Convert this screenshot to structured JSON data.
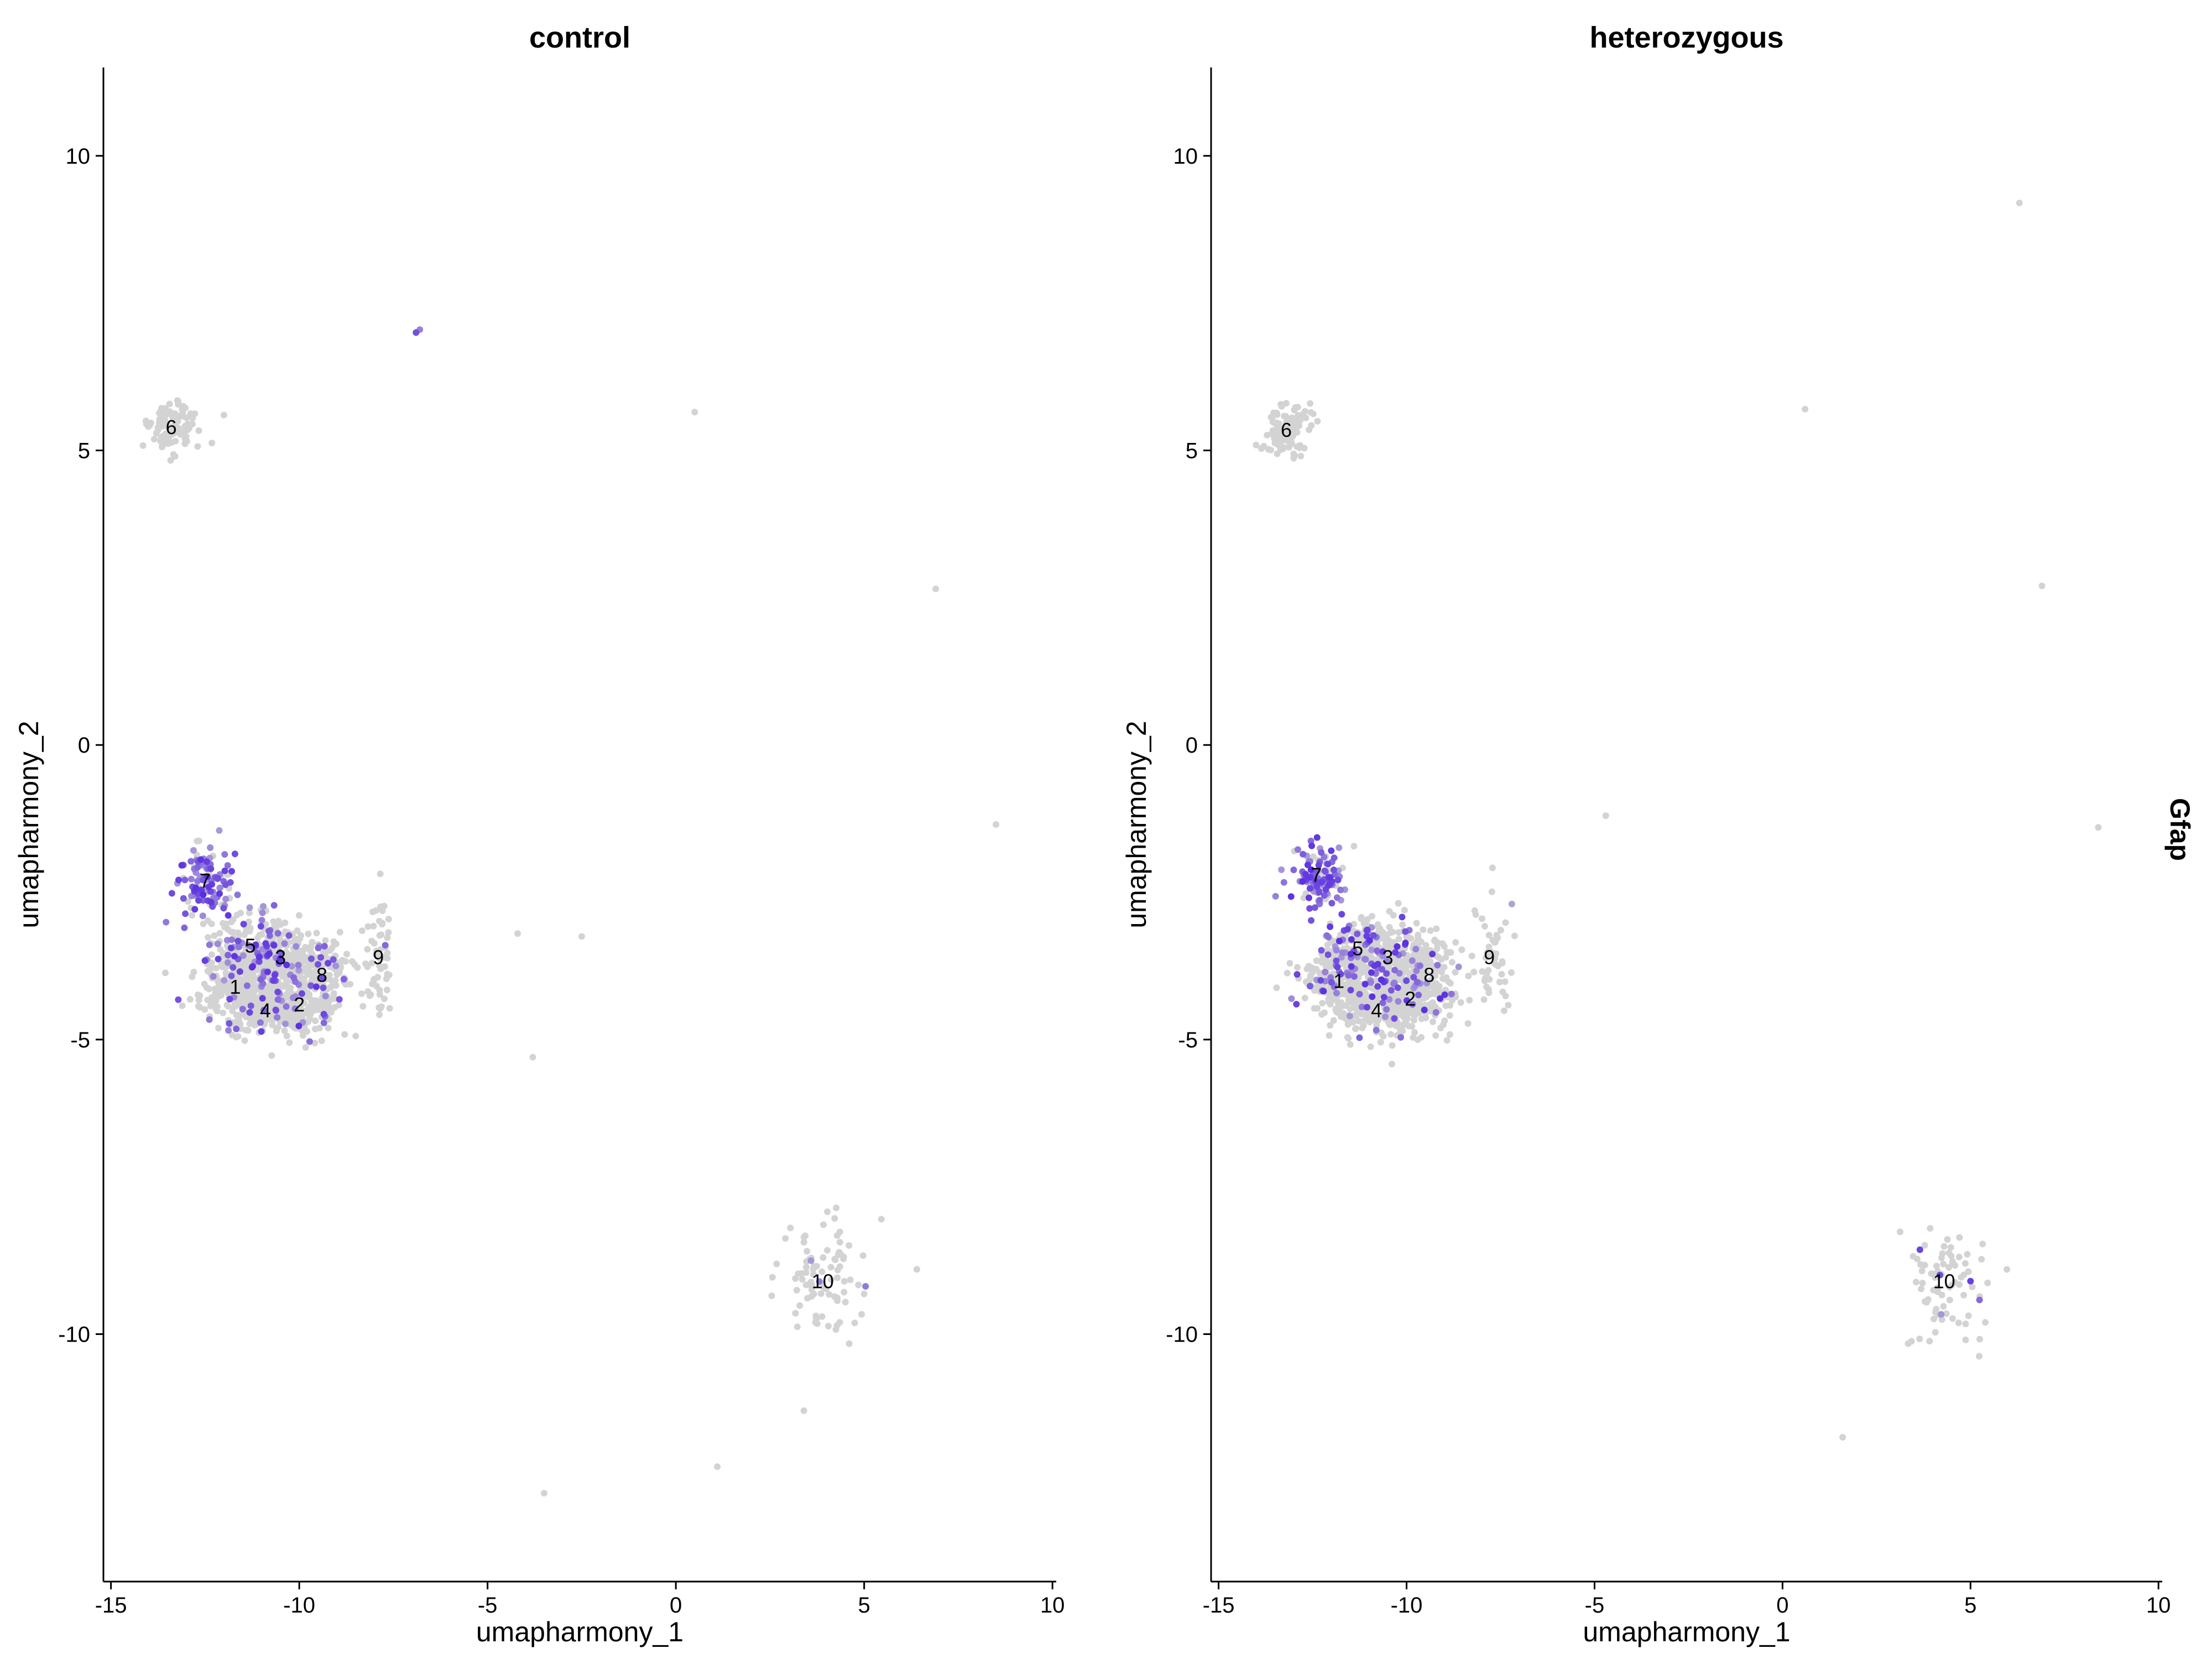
{
  "chart_data": [
    {
      "type": "scatter",
      "title": "control",
      "xlabel": "umapharmony_1",
      "ylabel": "umapharmony_2",
      "xlim": [
        -15.2,
        10.1
      ],
      "ylim": [
        -14.2,
        11.5
      ],
      "x_ticks": [
        -15,
        -10,
        -5,
        0,
        5,
        10
      ],
      "x_tick_labels": [
        "-15",
        "-10",
        "-5",
        "0",
        "5",
        "10"
      ],
      "y_ticks": [
        -10,
        -5,
        0,
        5,
        10
      ],
      "y_tick_labels": [
        "-10",
        "-5",
        "0",
        "5",
        "10"
      ],
      "grid": false,
      "low_color": "#d3d3d3",
      "high_color": "#5a2ee0",
      "clusters": [
        {
          "label": "1",
          "x": -11.7,
          "y": -4.1,
          "n": 220,
          "sx": 0.55,
          "sy": 0.3,
          "expr": 0.12
        },
        {
          "label": "2",
          "x": -10.0,
          "y": -4.4,
          "n": 180,
          "sx": 0.5,
          "sy": 0.3,
          "expr": 0.1
        },
        {
          "label": "3",
          "x": -10.5,
          "y": -3.6,
          "n": 180,
          "sx": 0.55,
          "sy": 0.3,
          "expr": 0.2
        },
        {
          "label": "4",
          "x": -10.9,
          "y": -4.5,
          "n": 200,
          "sx": 0.6,
          "sy": 0.25,
          "expr": 0.08
        },
        {
          "label": "5",
          "x": -11.3,
          "y": -3.4,
          "n": 170,
          "sx": 0.55,
          "sy": 0.3,
          "expr": 0.25
        },
        {
          "label": "6",
          "x": -13.4,
          "y": 5.4,
          "n": 110,
          "sx": 0.3,
          "sy": 0.2,
          "expr": 0.0
        },
        {
          "label": "7",
          "x": -12.5,
          "y": -2.3,
          "n": 120,
          "sx": 0.35,
          "sy": 0.3,
          "expr": 0.75
        },
        {
          "label": "8",
          "x": -9.4,
          "y": -3.9,
          "n": 140,
          "sx": 0.45,
          "sy": 0.35,
          "expr": 0.1
        },
        {
          "label": "9",
          "x": -7.9,
          "y": -3.6,
          "n": 60,
          "sx": 0.18,
          "sy": 0.55,
          "expr": 0.02
        },
        {
          "label": "10",
          "x": 3.9,
          "y": -9.1,
          "n": 90,
          "sx": 0.55,
          "sy": 0.45,
          "expr": 0.05
        }
      ],
      "outliers": [
        {
          "x": -6.9,
          "y": 7.0,
          "expr": 0.8
        },
        {
          "x": -6.8,
          "y": 7.05,
          "expr": 0.5
        },
        {
          "x": -12.0,
          "y": 5.6,
          "expr": 0.0
        },
        {
          "x": 0.5,
          "y": 5.65,
          "expr": 0.0
        },
        {
          "x": 6.9,
          "y": 2.65,
          "expr": 0.0
        },
        {
          "x": 8.5,
          "y": -1.35,
          "expr": 0.0
        },
        {
          "x": -4.2,
          "y": -3.2,
          "expr": 0.0
        },
        {
          "x": -2.5,
          "y": -3.25,
          "expr": 0.0
        },
        {
          "x": -3.8,
          "y": -5.3,
          "expr": 0.0
        },
        {
          "x": 3.4,
          "y": -11.3,
          "expr": 0.0
        },
        {
          "x": 1.1,
          "y": -12.25,
          "expr": 0.0
        },
        {
          "x": -3.5,
          "y": -12.7,
          "expr": 0.0
        },
        {
          "x": 6.4,
          "y": -8.9,
          "expr": 0.0
        }
      ]
    },
    {
      "type": "scatter",
      "title": "heterozygous",
      "xlabel": "umapharmony_1",
      "ylabel": "umapharmony_2",
      "xlim": [
        -15.2,
        10.1
      ],
      "ylim": [
        -14.2,
        11.5
      ],
      "x_ticks": [
        -15,
        -10,
        -5,
        0,
        5,
        10
      ],
      "x_tick_labels": [
        "-15",
        "-10",
        "-5",
        "0",
        "5",
        "10"
      ],
      "y_ticks": [
        -10,
        -5,
        0,
        5,
        10
      ],
      "y_tick_labels": [
        "-10",
        "-5",
        "0",
        "5",
        "10"
      ],
      "grid": false,
      "low_color": "#d3d3d3",
      "high_color": "#5a2ee0",
      "clusters": [
        {
          "label": "1",
          "x": -11.8,
          "y": -4.0,
          "n": 200,
          "sx": 0.5,
          "sy": 0.3,
          "expr": 0.15
        },
        {
          "label": "2",
          "x": -9.9,
          "y": -4.3,
          "n": 160,
          "sx": 0.5,
          "sy": 0.3,
          "expr": 0.1
        },
        {
          "label": "3",
          "x": -10.5,
          "y": -3.6,
          "n": 170,
          "sx": 0.55,
          "sy": 0.3,
          "expr": 0.22
        },
        {
          "label": "4",
          "x": -10.8,
          "y": -4.5,
          "n": 190,
          "sx": 0.6,
          "sy": 0.25,
          "expr": 0.08
        },
        {
          "label": "5",
          "x": -11.3,
          "y": -3.45,
          "n": 160,
          "sx": 0.55,
          "sy": 0.3,
          "expr": 0.3
        },
        {
          "label": "6",
          "x": -13.2,
          "y": 5.35,
          "n": 100,
          "sx": 0.3,
          "sy": 0.2,
          "expr": 0.0
        },
        {
          "label": "7",
          "x": -12.4,
          "y": -2.2,
          "n": 120,
          "sx": 0.35,
          "sy": 0.3,
          "expr": 0.8
        },
        {
          "label": "8",
          "x": -9.4,
          "y": -3.9,
          "n": 130,
          "sx": 0.45,
          "sy": 0.35,
          "expr": 0.1
        },
        {
          "label": "9",
          "x": -7.8,
          "y": -3.6,
          "n": 50,
          "sx": 0.3,
          "sy": 0.45,
          "expr": 0.05
        },
        {
          "label": "10",
          "x": 4.3,
          "y": -9.1,
          "n": 80,
          "sx": 0.6,
          "sy": 0.5,
          "expr": 0.05
        }
      ],
      "outliers": [
        {
          "x": 6.3,
          "y": 9.2,
          "expr": 0.0
        },
        {
          "x": 0.6,
          "y": 5.7,
          "expr": 0.0
        },
        {
          "x": 6.9,
          "y": 2.7,
          "expr": 0.0
        },
        {
          "x": 8.4,
          "y": -1.4,
          "expr": 0.0
        },
        {
          "x": -4.7,
          "y": -1.2,
          "expr": 0.0
        },
        {
          "x": -7.2,
          "y": -2.7,
          "expr": 0.3
        },
        {
          "x": 1.6,
          "y": -11.75,
          "expr": 0.0
        },
        {
          "x": 5.0,
          "y": -9.1,
          "expr": 0.9
        }
      ]
    }
  ],
  "feature_label": "Gfap"
}
